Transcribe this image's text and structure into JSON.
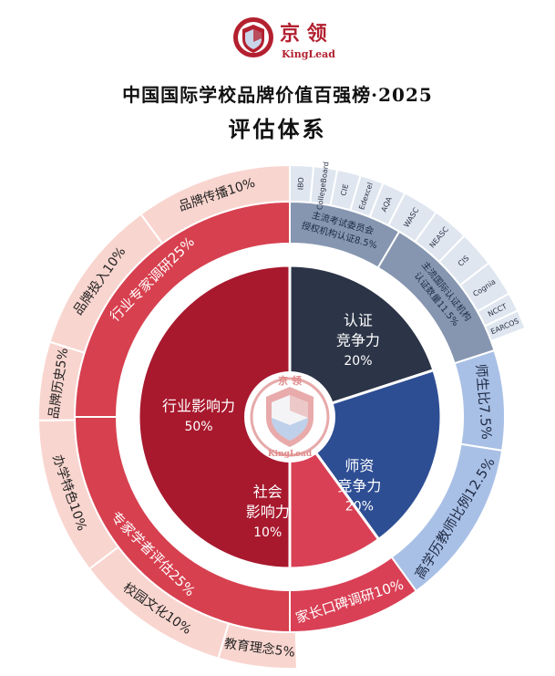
{
  "brand": {
    "logo_icon": "kinglead-shield-icon",
    "name_cn": "京 领",
    "name_en": "KingLead",
    "colors": {
      "primary": "#B3202F",
      "dark": "#2C3447",
      "blue": "#2E4E94"
    }
  },
  "title": {
    "line1": "中国国际学校品牌价值百强榜·2025",
    "line2": "评估体系"
  },
  "center_logo": {
    "top": "京 领",
    "bottom": "KingLead"
  },
  "chart_data": {
    "type": "pie",
    "rings": {
      "inner": [
        {
          "line1": "认证",
          "line2": "竞争力",
          "value": 20,
          "label": "20%",
          "color": "#2C3447"
        },
        {
          "line1": "师资",
          "line2": "竞争力",
          "value": 20,
          "label": "20%",
          "color": "#2E4E94"
        },
        {
          "line1": "社会",
          "line2": "影响力",
          "value": 10,
          "label": "10%",
          "color": "#D94055"
        },
        {
          "line1": "行业影响力",
          "line2": "",
          "value": 50,
          "label": "50%",
          "color": "#A8192E"
        }
      ],
      "middle": [
        {
          "label": "主流考试委员会授权机构认证8.5%",
          "line1": "主流考试委员会",
          "line2": "授权机构认证8.5%",
          "value": 8.5,
          "color": "#8696B0"
        },
        {
          "label": "主流国际认证机构认证数量11.5%",
          "line1": "主流国际认证机构",
          "line2": "认证数量11.5%",
          "value": 11.5,
          "color": "#8696B0"
        },
        {
          "label": "师生比7.5%",
          "value": 7.5,
          "color": "#A9C0E6"
        },
        {
          "label": "高学历教师比例12.5%",
          "value": 12.5,
          "color": "#A9C0E6"
        },
        {
          "label": "家长口碑调研10%",
          "value": 10,
          "color": "#D94055"
        },
        {
          "label": "专家学者评估25%",
          "value": 25,
          "color": "#D7404F"
        },
        {
          "label": "行业专家调研25%",
          "value": 25,
          "color": "#D7404F"
        }
      ],
      "outer": [
        {
          "label": "IBO",
          "value": 1.5,
          "color": "#DFE6F0"
        },
        {
          "label": "CollegeBoard",
          "value": 1.5,
          "color": "#DFE6F0"
        },
        {
          "label": "CIE",
          "value": 1.5,
          "color": "#DFE6F0"
        },
        {
          "label": "Edexcel",
          "value": 1.5,
          "color": "#DFE6F0"
        },
        {
          "label": "AQA",
          "value": 1.5,
          "color": "#DFE6F0"
        },
        {
          "label": "WASC",
          "value": 2.3,
          "color": "#DFE6F0"
        },
        {
          "label": "NEASC",
          "value": 2.3,
          "color": "#DFE6F0"
        },
        {
          "label": "CIS",
          "value": 2.3,
          "color": "#DFE6F0"
        },
        {
          "label": "Cognia",
          "value": 2.3,
          "color": "#DFE6F0"
        },
        {
          "label": "NCCT",
          "value": 1.2,
          "color": "#DFE6F0"
        },
        {
          "label": "EARCOS",
          "value": 1.2,
          "color": "#DFE6F0"
        },
        {
          "label": "",
          "value": 30,
          "color": "#FFFFFF"
        },
        {
          "label": "教育理念5%",
          "value": 5,
          "color": "#F9D5CF"
        },
        {
          "label": "校园文化10%",
          "value": 10,
          "color": "#F9D5CF"
        },
        {
          "label": "办学特色10%",
          "value": 10,
          "color": "#F9D5CF"
        },
        {
          "label": "品牌历史5%",
          "value": 5,
          "color": "#F9D5CF"
        },
        {
          "label": "品牌投入10%",
          "value": 10,
          "color": "#F9D5CF"
        },
        {
          "label": "品牌传播10%",
          "value": 10,
          "color": "#F9D5CF"
        }
      ]
    }
  }
}
